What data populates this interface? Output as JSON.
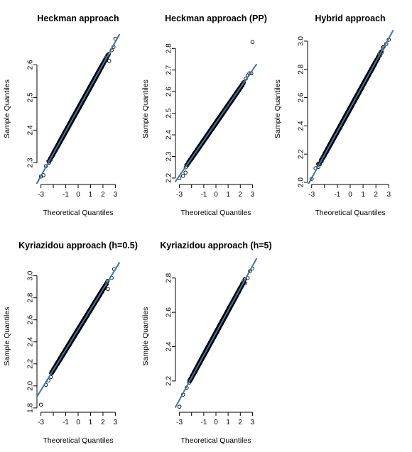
{
  "colors": {
    "ref_line": "#3f76a6",
    "points": "#000000",
    "axis": "#000000"
  },
  "chart_data": [
    {
      "type": "scatter",
      "subtype": "normal-qq",
      "title": "Heckman approach",
      "xlabel": "Theoretical Quantiles",
      "ylabel": "Sample Quantiles",
      "xlim": [
        -3.15,
        3.15
      ],
      "ylim": [
        2.24,
        2.69
      ],
      "xticks": [
        -3,
        -2,
        -1,
        0,
        1,
        2,
        3
      ],
      "xtick_labels": [
        "-3",
        "",
        "-1",
        "0",
        "1",
        "2",
        "3"
      ],
      "yticks": [
        2.3,
        2.4,
        2.5,
        2.6
      ],
      "ytick_labels": [
        "2.3",
        "2.4",
        "2.5",
        "2.6"
      ],
      "line": {
        "intercept": 2.465,
        "slope": 0.0685
      },
      "outliers": [
        [
          -3.0,
          2.258
        ],
        [
          -2.8,
          2.262
        ],
        [
          -2.6,
          2.29
        ],
        [
          -2.4,
          2.305
        ],
        [
          2.5,
          2.612
        ],
        [
          2.7,
          2.645
        ],
        [
          2.85,
          2.655
        ],
        [
          3.0,
          2.68
        ]
      ],
      "n": 1000
    },
    {
      "type": "scatter",
      "subtype": "normal-qq",
      "title": "Heckman approach (PP)",
      "xlabel": "Theoretical Quantiles",
      "ylabel": "Sample Quantiles",
      "xlim": [
        -3.15,
        3.15
      ],
      "ylim": [
        2.18,
        2.86
      ],
      "xticks": [
        -3,
        -2,
        -1,
        0,
        1,
        2,
        3
      ],
      "xtick_labels": [
        "-3",
        "",
        "-1",
        "0",
        "1",
        "2",
        "3"
      ],
      "yticks": [
        2.2,
        2.3,
        2.4,
        2.5,
        2.6,
        2.7,
        2.8
      ],
      "ytick_labels": [
        "2.2",
        "2.3",
        "2.4",
        "2.5",
        "2.6",
        "2.7",
        "2.8"
      ],
      "line": {
        "intercept": 2.455,
        "slope": 0.0815
      },
      "outliers": [
        [
          -3.0,
          2.2
        ],
        [
          -2.7,
          2.21
        ],
        [
          -2.5,
          2.225
        ],
        [
          2.3,
          2.645
        ],
        [
          2.45,
          2.66
        ],
        [
          2.6,
          2.675
        ],
        [
          2.75,
          2.685
        ],
        [
          2.9,
          2.685
        ],
        [
          3.0,
          2.83
        ]
      ],
      "n": 1000
    },
    {
      "type": "scatter",
      "subtype": "normal-qq",
      "title": "Hybrid approach",
      "xlabel": "Theoretical Quantiles",
      "ylabel": "Sample Quantiles",
      "xlim": [
        -3.15,
        3.15
      ],
      "ylim": [
        2.0,
        3.04
      ],
      "xticks": [
        -3,
        -2,
        -1,
        0,
        1,
        2,
        3
      ],
      "xtick_labels": [
        "-3",
        "",
        "-1",
        "0",
        "1",
        "2",
        "3"
      ],
      "yticks": [
        2.0,
        2.2,
        2.4,
        2.6,
        2.8,
        3.0
      ],
      "ytick_labels": [
        "2.0",
        "2.2",
        "2.4",
        "2.6",
        "2.8",
        "3.0"
      ],
      "line": {
        "intercept": 2.525,
        "slope": 0.165
      },
      "outliers": [
        [
          -3.0,
          2.025
        ],
        [
          -2.7,
          2.1
        ],
        [
          -2.5,
          2.13
        ],
        [
          2.6,
          2.96
        ],
        [
          2.8,
          2.98
        ],
        [
          3.0,
          3.01
        ]
      ],
      "n": 1000
    },
    {
      "type": "scatter",
      "subtype": "normal-qq",
      "title": "Kyriazidou approach (h=0.5)",
      "xlabel": "Theoretical Quantiles",
      "ylabel": "Sample Quantiles",
      "xlim": [
        -3.15,
        3.15
      ],
      "ylim": [
        1.78,
        3.12
      ],
      "xticks": [
        -3,
        -2,
        -1,
        0,
        1,
        2,
        3
      ],
      "xtick_labels": [
        "-3",
        "",
        "-1",
        "0",
        "1",
        "2",
        "3"
      ],
      "yticks": [
        1.8,
        2.0,
        2.2,
        2.4,
        2.6,
        2.8,
        3.0
      ],
      "ytick_labels": [
        "1.8",
        "2.0",
        "2.2",
        "2.4",
        "2.6",
        "2.8",
        "3.0"
      ],
      "line": {
        "intercept": 2.51,
        "slope": 0.183
      },
      "outliers": [
        [
          -3.0,
          1.83
        ],
        [
          -2.6,
          2.01
        ],
        [
          -2.4,
          2.05
        ],
        [
          -2.2,
          2.08
        ],
        [
          2.4,
          2.88
        ],
        [
          2.7,
          2.98
        ],
        [
          2.9,
          3.06
        ]
      ],
      "n": 1000
    },
    {
      "type": "scatter",
      "subtype": "normal-qq",
      "title": "Kyriazidou approach (h=5)",
      "xlabel": "Theoretical Quantiles",
      "ylabel": "Sample Quantiles",
      "xlim": [
        -3.15,
        3.15
      ],
      "ylim": [
        2.03,
        2.89
      ],
      "xticks": [
        -3,
        -2,
        -1,
        0,
        1,
        2,
        3
      ],
      "xtick_labels": [
        "-3",
        "",
        "-1",
        "0",
        "1",
        "2",
        "3"
      ],
      "yticks": [
        2.2,
        2.4,
        2.6,
        2.8
      ],
      "ytick_labels": [
        "2.2",
        "2.4",
        "2.6",
        "2.8"
      ],
      "line": {
        "intercept": 2.48,
        "slope": 0.13
      },
      "outliers": [
        [
          -3.0,
          2.05
        ],
        [
          -2.7,
          2.12
        ],
        [
          -2.4,
          2.16
        ],
        [
          -2.2,
          2.19
        ],
        [
          2.4,
          2.77
        ],
        [
          2.6,
          2.8
        ],
        [
          2.8,
          2.84
        ],
        [
          3.0,
          2.855
        ]
      ],
      "n": 1000
    }
  ]
}
